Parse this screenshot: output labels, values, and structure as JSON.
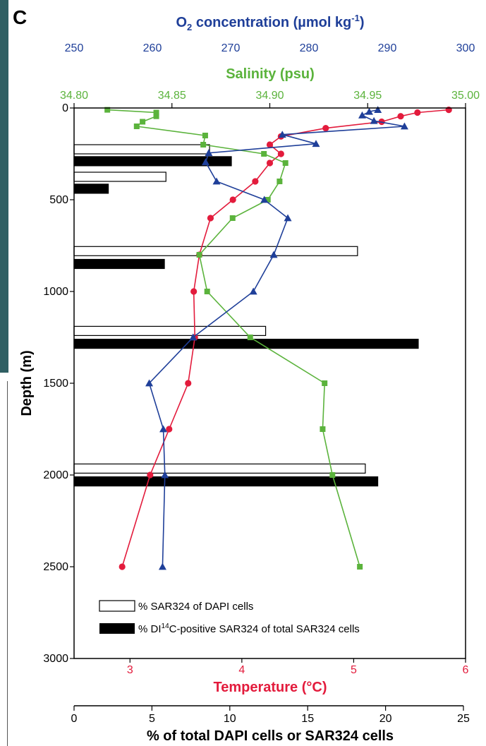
{
  "panel_label": "C",
  "colors": {
    "oxygen": "#1f3f99",
    "salinity": "#5bb33c",
    "temperature": "#e31b3c",
    "axis": "#000000"
  },
  "chart_data": {
    "type": "line",
    "grid": false,
    "y_axis": {
      "label": "Depth (m)",
      "range": [
        0,
        3000
      ],
      "reversed": true,
      "ticks": [
        "0",
        "500",
        "1000",
        "1500",
        "2000",
        "2500",
        "3000"
      ],
      "tick_values": [
        0,
        500,
        1000,
        1500,
        2000,
        2500,
        3000
      ]
    },
    "axes": {
      "oxygen": {
        "label_main": "O",
        "label_sub": "2",
        "label_rest": " concentration (µmol kg",
        "label_sup": "-1",
        "label_end": ")",
        "range": [
          250,
          300
        ],
        "ticks": [
          "250",
          "260",
          "270",
          "280",
          "290",
          "300"
        ],
        "tick_values": [
          250,
          260,
          270,
          280,
          290,
          300
        ]
      },
      "salinity": {
        "label": "Salinity (psu)",
        "range": [
          34.8,
          35.0
        ],
        "ticks": [
          "34.80",
          "34.85",
          "34.90",
          "34.95",
          "35.00"
        ],
        "tick_values": [
          34.8,
          34.85,
          34.9,
          34.95,
          35.0
        ]
      },
      "temperature": {
        "label": "Temperature (°C)",
        "range": [
          2.5,
          6
        ],
        "ticks": [
          "3",
          "4",
          "5",
          "6"
        ],
        "tick_values": [
          3,
          4,
          5,
          6
        ]
      },
      "percent": {
        "label": "% of total DAPI cells or SAR324 cells",
        "range": [
          0,
          25
        ],
        "ticks": [
          "0",
          "5",
          "10",
          "15",
          "20",
          "25"
        ],
        "tick_values": [
          0,
          5,
          10,
          15,
          20,
          25
        ]
      }
    },
    "series": [
      {
        "key": "temperature",
        "marker": "circle",
        "points": [
          {
            "x": 5.85,
            "y": 10
          },
          {
            "x": 5.57,
            "y": 25
          },
          {
            "x": 5.42,
            "y": 45
          },
          {
            "x": 5.25,
            "y": 75
          },
          {
            "x": 4.75,
            "y": 110
          },
          {
            "x": 4.35,
            "y": 155
          },
          {
            "x": 4.25,
            "y": 200
          },
          {
            "x": 4.35,
            "y": 250
          },
          {
            "x": 4.25,
            "y": 300
          },
          {
            "x": 4.12,
            "y": 400
          },
          {
            "x": 3.92,
            "y": 500
          },
          {
            "x": 3.72,
            "y": 600
          },
          {
            "x": 3.62,
            "y": 800
          },
          {
            "x": 3.57,
            "y": 1000
          },
          {
            "x": 3.58,
            "y": 1250
          },
          {
            "x": 3.52,
            "y": 1500
          },
          {
            "x": 3.35,
            "y": 1750
          },
          {
            "x": 3.18,
            "y": 2000
          },
          {
            "x": 2.93,
            "y": 2500
          }
        ]
      },
      {
        "key": "salinity",
        "marker": "square",
        "points": [
          {
            "x": 34.817,
            "y": 10
          },
          {
            "x": 34.842,
            "y": 25
          },
          {
            "x": 34.842,
            "y": 45
          },
          {
            "x": 34.835,
            "y": 75
          },
          {
            "x": 34.832,
            "y": 100
          },
          {
            "x": 34.867,
            "y": 150
          },
          {
            "x": 34.866,
            "y": 200
          },
          {
            "x": 34.897,
            "y": 250
          },
          {
            "x": 34.908,
            "y": 300
          },
          {
            "x": 34.905,
            "y": 400
          },
          {
            "x": 34.899,
            "y": 500
          },
          {
            "x": 34.881,
            "y": 600
          },
          {
            "x": 34.864,
            "y": 800
          },
          {
            "x": 34.868,
            "y": 1000
          },
          {
            "x": 34.89,
            "y": 1250
          },
          {
            "x": 34.928,
            "y": 1500
          },
          {
            "x": 34.927,
            "y": 1750
          },
          {
            "x": 34.932,
            "y": 2000
          },
          {
            "x": 34.946,
            "y": 2500
          }
        ]
      },
      {
        "key": "oxygen",
        "marker": "triangle",
        "points": [
          {
            "x": 288.8,
            "y": 10
          },
          {
            "x": 287.7,
            "y": 20
          },
          {
            "x": 286.8,
            "y": 40
          },
          {
            "x": 288.3,
            "y": 70
          },
          {
            "x": 292.2,
            "y": 100
          },
          {
            "x": 276.6,
            "y": 145
          },
          {
            "x": 280.9,
            "y": 195
          },
          {
            "x": 267.2,
            "y": 245
          },
          {
            "x": 266.8,
            "y": 295
          },
          {
            "x": 268.2,
            "y": 400
          },
          {
            "x": 274.3,
            "y": 500
          },
          {
            "x": 277.3,
            "y": 600
          },
          {
            "x": 275.5,
            "y": 800
          },
          {
            "x": 272.9,
            "y": 1000
          },
          {
            "x": 265.2,
            "y": 1250
          },
          {
            "x": 259.6,
            "y": 1500
          },
          {
            "x": 261.4,
            "y": 1750
          },
          {
            "x": 261.6,
            "y": 2000
          },
          {
            "x": 261.3,
            "y": 2500
          }
        ]
      }
    ],
    "bars": [
      {
        "kind": "dapi",
        "depth": 225,
        "value": 8.7
      },
      {
        "kind": "di14c",
        "depth": 290,
        "value": 10.1
      },
      {
        "kind": "dapi",
        "depth": 375,
        "value": 5.9
      },
      {
        "kind": "di14c",
        "depth": 440,
        "value": 2.2
      },
      {
        "kind": "dapi",
        "depth": 780,
        "value": 18.2
      },
      {
        "kind": "di14c",
        "depth": 850,
        "value": 5.8
      },
      {
        "kind": "dapi",
        "depth": 1215,
        "value": 12.3
      },
      {
        "kind": "di14c",
        "depth": 1285,
        "value": 22.1
      },
      {
        "kind": "dapi",
        "depth": 1965,
        "value": 18.7
      },
      {
        "kind": "di14c",
        "depth": 2035,
        "value": 19.5
      }
    ],
    "legend": {
      "placement": "bottom-left",
      "items": [
        {
          "kind": "dapi",
          "label": "% SAR324 of DAPI cells"
        },
        {
          "kind": "di14c",
          "label_pre": "% DI",
          "label_sup": "14",
          "label_post": "C-positive SAR324 of total SAR324 cells"
        }
      ]
    }
  }
}
